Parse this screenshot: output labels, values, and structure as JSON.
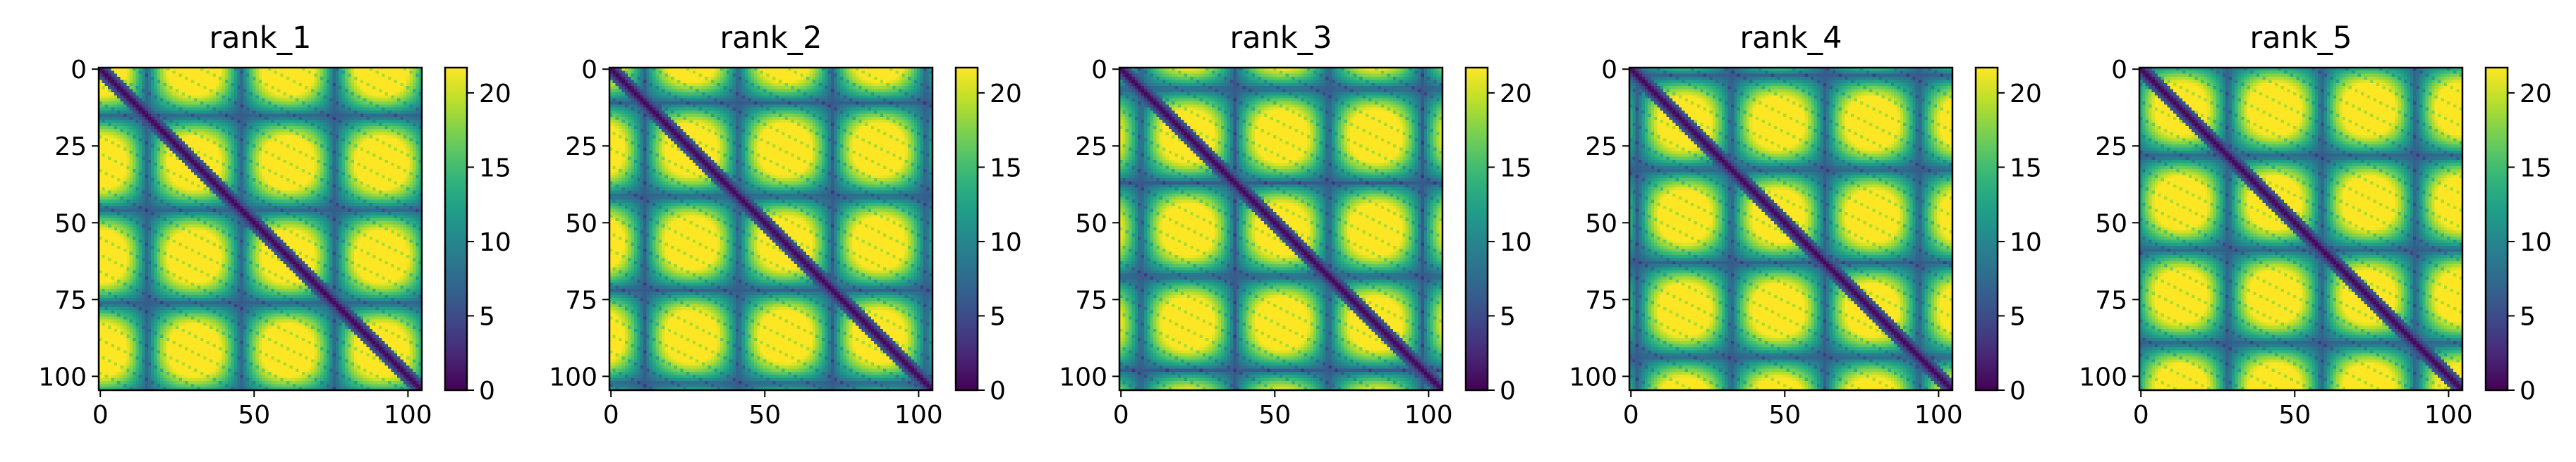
{
  "chart_data": [
    {
      "type": "heatmap",
      "title": "rank_1",
      "matrix_size": 105,
      "x_ticks": [
        "0",
        "50",
        "100"
      ],
      "y_ticks": [
        "0",
        "25",
        "50",
        "75",
        "100"
      ],
      "colorbar": {
        "range": [
          0,
          21.7
        ],
        "ticks": [
          "0",
          "5",
          "10",
          "15",
          "20"
        ],
        "colormap": "viridis"
      },
      "pattern": "pairwise distance map: diagonal band near 0, off-diagonal values up to ~21.7 with repeating ring contacts"
    },
    {
      "type": "heatmap",
      "title": "rank_2",
      "matrix_size": 105,
      "x_ticks": [
        "0",
        "50",
        "100"
      ],
      "y_ticks": [
        "0",
        "25",
        "50",
        "75",
        "100"
      ],
      "colorbar": {
        "range": [
          0,
          21.7
        ],
        "ticks": [
          "0",
          "5",
          "10",
          "15",
          "20"
        ],
        "colormap": "viridis"
      },
      "pattern": "pairwise distance map: diagonal band near 0, off-diagonal values up to ~21.7 with repeating ring contacts"
    },
    {
      "type": "heatmap",
      "title": "rank_3",
      "matrix_size": 105,
      "x_ticks": [
        "0",
        "50",
        "100"
      ],
      "y_ticks": [
        "0",
        "25",
        "50",
        "75",
        "100"
      ],
      "colorbar": {
        "range": [
          0,
          21.7
        ],
        "ticks": [
          "0",
          "5",
          "10",
          "15",
          "20"
        ],
        "colormap": "viridis"
      },
      "pattern": "pairwise distance map: diagonal band near 0, off-diagonal values up to ~21.7 with repeating ring contacts"
    },
    {
      "type": "heatmap",
      "title": "rank_4",
      "matrix_size": 105,
      "x_ticks": [
        "0",
        "50",
        "100"
      ],
      "y_ticks": [
        "0",
        "25",
        "50",
        "75",
        "100"
      ],
      "colorbar": {
        "range": [
          0,
          21.7
        ],
        "ticks": [
          "0",
          "5",
          "10",
          "15",
          "20"
        ],
        "colormap": "viridis"
      },
      "pattern": "pairwise distance map: diagonal band near 0, off-diagonal values up to ~21.7 with repeating ring contacts"
    },
    {
      "type": "heatmap",
      "title": "rank_5",
      "matrix_size": 105,
      "x_ticks": [
        "0",
        "50",
        "100"
      ],
      "y_ticks": [
        "0",
        "25",
        "50",
        "75",
        "100"
      ],
      "colorbar": {
        "range": [
          0,
          21.7
        ],
        "ticks": [
          "0",
          "5",
          "10",
          "15",
          "20"
        ],
        "colormap": "viridis"
      },
      "pattern": "pairwise distance map: diagonal band near 0, off-diagonal values up to ~21.7 with repeating ring contacts"
    }
  ]
}
